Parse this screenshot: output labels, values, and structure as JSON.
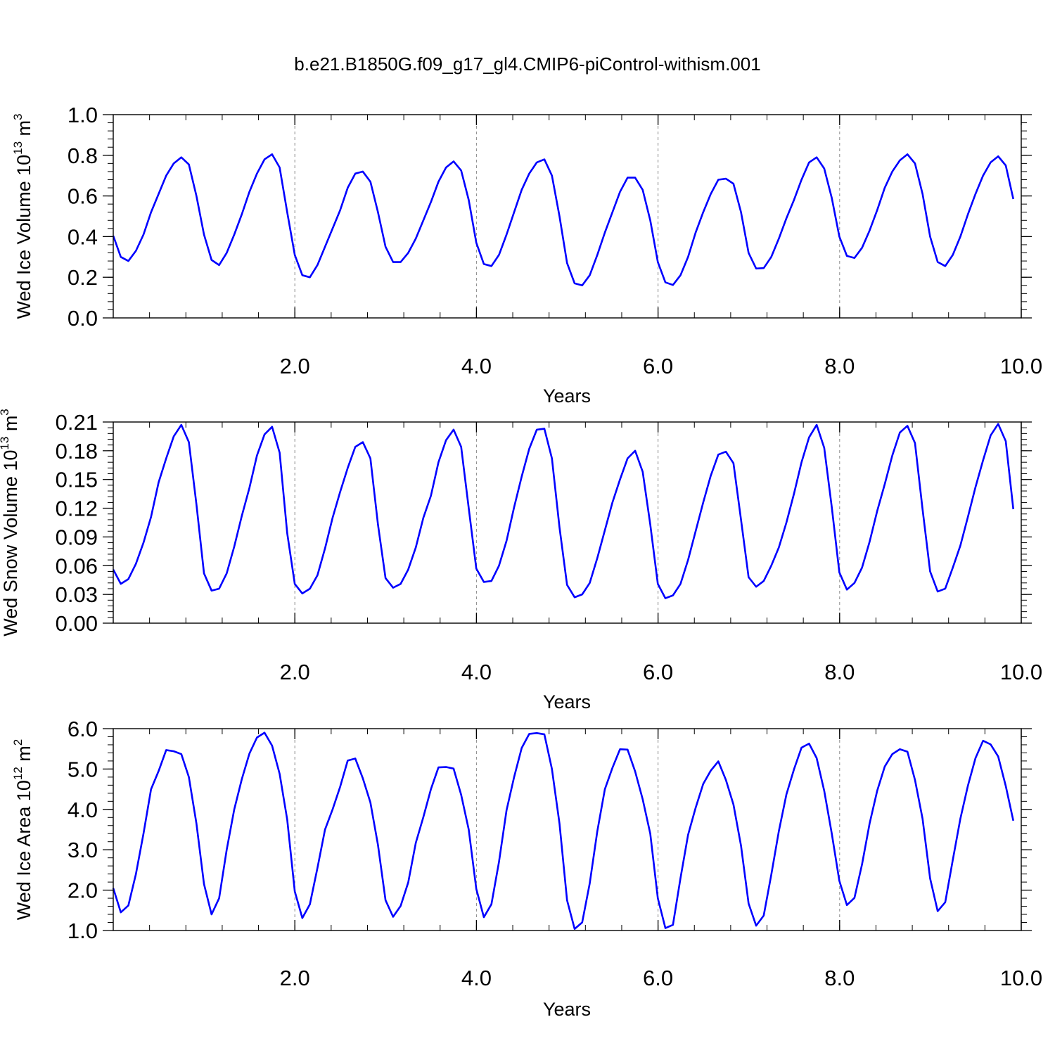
{
  "title": "b.e21.B1850G.f09_g17_gl4.CMIP6-piControl-withism.001",
  "colors": {
    "line": "#0000ff",
    "axis": "#000000",
    "grid": "#888888"
  },
  "chart_data": [
    {
      "type": "line",
      "name": "ice-volume",
      "ylabel": "Wed Ice Volume 10",
      "ylabel_exp": "13",
      "ylabel_unit": " m",
      "ylabel_unit_exp": "3",
      "xlabel": "",
      "xlim": [
        0.0,
        10.0
      ],
      "ylim": [
        0.0,
        1.0
      ],
      "x_ticks": [
        2.0,
        4.0,
        6.0,
        8.0,
        10.0
      ],
      "x_tick_labels": [
        "2.0",
        "4.0",
        "6.0",
        "8.0",
        "10.0"
      ],
      "y_ticks": [
        0.0,
        0.2,
        0.4,
        0.6,
        0.8,
        1.0
      ],
      "y_tick_labels": [
        "0.0",
        "0.2",
        "0.4",
        "0.6",
        "0.8",
        "1.0"
      ],
      "grid": "dashed vertical lines at major x ticks",
      "x_start": 0.0,
      "x_step": 0.0833,
      "values": [
        0.404,
        0.3,
        0.28,
        0.33,
        0.41,
        0.52,
        0.61,
        0.7,
        0.76,
        0.79,
        0.755,
        0.6,
        0.41,
        0.285,
        0.26,
        0.32,
        0.41,
        0.51,
        0.62,
        0.71,
        0.78,
        0.805,
        0.74,
        0.52,
        0.31,
        0.21,
        0.2,
        0.26,
        0.35,
        0.44,
        0.53,
        0.64,
        0.71,
        0.72,
        0.67,
        0.52,
        0.35,
        0.275,
        0.275,
        0.32,
        0.39,
        0.48,
        0.57,
        0.67,
        0.74,
        0.77,
        0.725,
        0.58,
        0.37,
        0.265,
        0.255,
        0.31,
        0.41,
        0.52,
        0.63,
        0.71,
        0.765,
        0.78,
        0.7,
        0.5,
        0.27,
        0.17,
        0.16,
        0.21,
        0.31,
        0.42,
        0.52,
        0.62,
        0.69,
        0.69,
        0.63,
        0.48,
        0.275,
        0.175,
        0.162,
        0.21,
        0.3,
        0.42,
        0.52,
        0.61,
        0.68,
        0.685,
        0.66,
        0.52,
        0.32,
        0.243,
        0.245,
        0.3,
        0.39,
        0.49,
        0.58,
        0.68,
        0.765,
        0.79,
        0.735,
        0.59,
        0.4,
        0.305,
        0.295,
        0.345,
        0.43,
        0.53,
        0.64,
        0.72,
        0.775,
        0.805,
        0.76,
        0.61,
        0.4,
        0.275,
        0.255,
        0.31,
        0.4,
        0.51,
        0.61,
        0.7,
        0.765,
        0.795,
        0.75,
        0.585
      ]
    },
    {
      "type": "line",
      "name": "snow-volume",
      "ylabel": "Wed Snow Volume 10",
      "ylabel_exp": "13",
      "ylabel_unit": " m",
      "ylabel_unit_exp": "3",
      "xlabel": "",
      "xlim": [
        0.0,
        10.0
      ],
      "ylim": [
        0.0,
        0.21
      ],
      "x_ticks": [
        2.0,
        4.0,
        6.0,
        8.0,
        10.0
      ],
      "x_tick_labels": [
        "2.0",
        "4.0",
        "6.0",
        "8.0",
        "10.0"
      ],
      "y_ticks": [
        0.0,
        0.03,
        0.06,
        0.09,
        0.12,
        0.15,
        0.18,
        0.21
      ],
      "y_tick_labels": [
        "0.00",
        "0.03",
        "0.06",
        "0.09",
        "0.12",
        "0.15",
        "0.18",
        "0.21"
      ],
      "grid": "dashed vertical lines at major x ticks",
      "x_start": 0.0,
      "x_step": 0.0833,
      "values": [
        0.056,
        0.041,
        0.046,
        0.062,
        0.084,
        0.111,
        0.147,
        0.172,
        0.195,
        0.207,
        0.189,
        0.124,
        0.052,
        0.034,
        0.036,
        0.052,
        0.08,
        0.112,
        0.141,
        0.175,
        0.197,
        0.205,
        0.178,
        0.094,
        0.041,
        0.031,
        0.036,
        0.05,
        0.078,
        0.11,
        0.137,
        0.162,
        0.184,
        0.189,
        0.172,
        0.103,
        0.047,
        0.037,
        0.041,
        0.056,
        0.079,
        0.11,
        0.133,
        0.168,
        0.191,
        0.202,
        0.184,
        0.12,
        0.057,
        0.043,
        0.044,
        0.06,
        0.086,
        0.121,
        0.153,
        0.182,
        0.202,
        0.203,
        0.172,
        0.1,
        0.04,
        0.027,
        0.03,
        0.042,
        0.068,
        0.097,
        0.126,
        0.15,
        0.172,
        0.18,
        0.158,
        0.103,
        0.041,
        0.026,
        0.029,
        0.041,
        0.066,
        0.096,
        0.126,
        0.154,
        0.176,
        0.179,
        0.167,
        0.108,
        0.048,
        0.038,
        0.044,
        0.06,
        0.079,
        0.105,
        0.135,
        0.168,
        0.194,
        0.207,
        0.183,
        0.121,
        0.053,
        0.035,
        0.042,
        0.058,
        0.085,
        0.117,
        0.145,
        0.175,
        0.199,
        0.206,
        0.188,
        0.119,
        0.054,
        0.033,
        0.036,
        0.058,
        0.081,
        0.111,
        0.142,
        0.17,
        0.196,
        0.208,
        0.19,
        0.119
      ]
    },
    {
      "type": "line",
      "name": "ice-area",
      "ylabel": "Wed Ice Area 10",
      "ylabel_exp": "12",
      "ylabel_unit": " m",
      "ylabel_unit_exp": "2",
      "xlabel": "Years",
      "xlim": [
        0.0,
        10.0
      ],
      "ylim": [
        1.0,
        6.0
      ],
      "x_ticks": [
        2.0,
        4.0,
        6.0,
        8.0,
        10.0
      ],
      "x_tick_labels": [
        "2.0",
        "4.0",
        "6.0",
        "8.0",
        "10.0"
      ],
      "y_ticks": [
        1.0,
        2.0,
        3.0,
        4.0,
        5.0,
        6.0
      ],
      "y_tick_labels": [
        "1.0",
        "2.0",
        "3.0",
        "4.0",
        "5.0",
        "6.0"
      ],
      "grid": "dashed vertical lines at major x ticks",
      "x_start": 0.0,
      "x_step": 0.0833,
      "values": [
        2.05,
        1.45,
        1.62,
        2.4,
        3.4,
        4.5,
        4.95,
        5.47,
        5.44,
        5.37,
        4.8,
        3.65,
        2.15,
        1.4,
        1.8,
        3.0,
        4.0,
        4.75,
        5.38,
        5.78,
        5.9,
        5.58,
        4.88,
        3.75,
        1.97,
        1.31,
        1.65,
        2.55,
        3.5,
        4.0,
        4.56,
        5.21,
        5.26,
        4.77,
        4.17,
        3.12,
        1.75,
        1.34,
        1.61,
        2.19,
        3.17,
        3.81,
        4.5,
        5.04,
        5.05,
        5.01,
        4.36,
        3.5,
        2.03,
        1.33,
        1.65,
        2.7,
        3.98,
        4.8,
        5.52,
        5.87,
        5.89,
        5.86,
        5.0,
        3.65,
        1.75,
        1.04,
        1.2,
        2.17,
        3.46,
        4.5,
        5.03,
        5.49,
        5.48,
        4.94,
        4.25,
        3.4,
        1.8,
        1.06,
        1.14,
        2.3,
        3.37,
        4.04,
        4.63,
        4.96,
        5.19,
        4.73,
        4.12,
        3.1,
        1.67,
        1.12,
        1.37,
        2.38,
        3.46,
        4.37,
        4.99,
        5.53,
        5.63,
        5.27,
        4.46,
        3.4,
        2.23,
        1.63,
        1.81,
        2.64,
        3.65,
        4.46,
        5.06,
        5.37,
        5.49,
        5.43,
        4.73,
        3.77,
        2.29,
        1.48,
        1.7,
        2.75,
        3.77,
        4.59,
        5.27,
        5.7,
        5.61,
        5.31,
        4.58,
        3.72
      ]
    }
  ],
  "x_axis_title_top": "Years",
  "x_axis_title_mid": "Years"
}
